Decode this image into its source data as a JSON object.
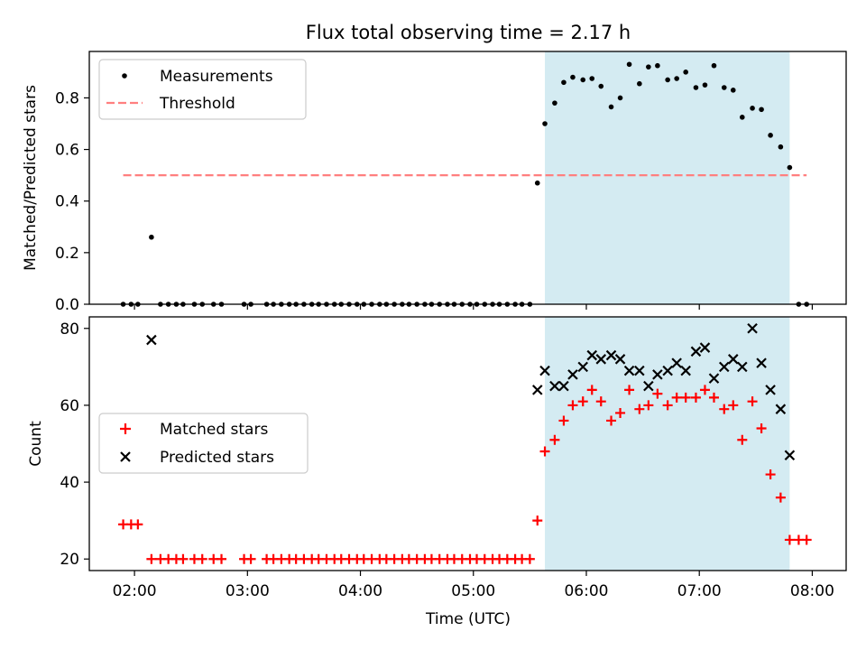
{
  "title": "Flux total observing time = 2.17 h",
  "colors": {
    "measurements": "#000000",
    "threshold": "#ff7f7f",
    "matched": "#ff0000",
    "predicted": "#000000",
    "span": "#add8e6"
  },
  "chart_data": [
    {
      "type": "scatter",
      "ylabel": "Matched/Predicted stars",
      "xlabel": "",
      "xlim": [
        1.6,
        8.3
      ],
      "ylim": [
        0,
        0.98
      ],
      "grid": false,
      "legend": "top-left",
      "x_ticks": [
        2,
        3,
        4,
        5,
        6,
        7,
        8
      ],
      "y_ticks": [
        "0.0",
        "0.2",
        "0.4",
        "0.6",
        "0.8"
      ],
      "highlight_span": [
        5.633,
        7.8
      ],
      "threshold": {
        "name": "Threshold",
        "value": 0.5,
        "x_range": [
          1.9,
          7.95
        ]
      },
      "series": [
        {
          "name": "Measurements",
          "marker": "dot",
          "points": [
            [
              1.9,
              0
            ],
            [
              1.97,
              0
            ],
            [
              2.03,
              0
            ],
            [
              2.15,
              0.26
            ],
            [
              2.23,
              0
            ],
            [
              2.3,
              0
            ],
            [
              2.37,
              0
            ],
            [
              2.43,
              0
            ],
            [
              2.53,
              0
            ],
            [
              2.6,
              0
            ],
            [
              2.7,
              0
            ],
            [
              2.77,
              0
            ],
            [
              2.97,
              0
            ],
            [
              3.03,
              0
            ],
            [
              3.17,
              0
            ],
            [
              3.23,
              0
            ],
            [
              3.3,
              0
            ],
            [
              3.37,
              0
            ],
            [
              3.43,
              0
            ],
            [
              3.5,
              0
            ],
            [
              3.57,
              0
            ],
            [
              3.63,
              0
            ],
            [
              3.7,
              0
            ],
            [
              3.77,
              0
            ],
            [
              3.83,
              0
            ],
            [
              3.9,
              0
            ],
            [
              3.97,
              0
            ],
            [
              4.03,
              0
            ],
            [
              4.1,
              0
            ],
            [
              4.17,
              0
            ],
            [
              4.23,
              0
            ],
            [
              4.3,
              0
            ],
            [
              4.37,
              0
            ],
            [
              4.43,
              0
            ],
            [
              4.5,
              0
            ],
            [
              4.57,
              0
            ],
            [
              4.63,
              0
            ],
            [
              4.7,
              0
            ],
            [
              4.77,
              0
            ],
            [
              4.83,
              0
            ],
            [
              4.9,
              0
            ],
            [
              4.97,
              0
            ],
            [
              5.03,
              0
            ],
            [
              5.1,
              0
            ],
            [
              5.17,
              0
            ],
            [
              5.23,
              0
            ],
            [
              5.3,
              0
            ],
            [
              5.37,
              0
            ],
            [
              5.43,
              0
            ],
            [
              5.5,
              0
            ],
            [
              5.567,
              0.47
            ],
            [
              5.633,
              0.7
            ],
            [
              5.72,
              0.78
            ],
            [
              5.8,
              0.86
            ],
            [
              5.88,
              0.88
            ],
            [
              5.97,
              0.87
            ],
            [
              6.05,
              0.875
            ],
            [
              6.13,
              0.845
            ],
            [
              6.22,
              0.765
            ],
            [
              6.3,
              0.8
            ],
            [
              6.38,
              0.93
            ],
            [
              6.47,
              0.855
            ],
            [
              6.55,
              0.92
            ],
            [
              6.63,
              0.925
            ],
            [
              6.72,
              0.87
            ],
            [
              6.8,
              0.875
            ],
            [
              6.88,
              0.9
            ],
            [
              6.97,
              0.84
            ],
            [
              7.05,
              0.85
            ],
            [
              7.13,
              0.925
            ],
            [
              7.22,
              0.84
            ],
            [
              7.3,
              0.83
            ],
            [
              7.38,
              0.725
            ],
            [
              7.47,
              0.76
            ],
            [
              7.55,
              0.755
            ],
            [
              7.63,
              0.655
            ],
            [
              7.72,
              0.61
            ],
            [
              7.8,
              0.53
            ],
            [
              7.88,
              0
            ],
            [
              7.95,
              0
            ]
          ]
        }
      ]
    },
    {
      "type": "scatter",
      "ylabel": "Count",
      "xlabel": "Time (UTC)",
      "xlim": [
        1.6,
        8.3
      ],
      "ylim": [
        17,
        83
      ],
      "grid": false,
      "legend": "center-left",
      "x_ticks": [
        2,
        3,
        4,
        5,
        6,
        7,
        8
      ],
      "x_tick_labels": [
        "02:00",
        "03:00",
        "04:00",
        "05:00",
        "06:00",
        "07:00",
        "08:00"
      ],
      "y_ticks": [
        "20",
        "40",
        "60",
        "80"
      ],
      "highlight_span": [
        5.633,
        7.8
      ],
      "series": [
        {
          "name": "Matched stars",
          "marker": "plus",
          "points": [
            [
              1.9,
              29
            ],
            [
              1.97,
              29
            ],
            [
              2.03,
              29
            ],
            [
              2.15,
              20
            ],
            [
              2.23,
              20
            ],
            [
              2.3,
              20
            ],
            [
              2.37,
              20
            ],
            [
              2.43,
              20
            ],
            [
              2.53,
              20
            ],
            [
              2.6,
              20
            ],
            [
              2.7,
              20
            ],
            [
              2.77,
              20
            ],
            [
              2.97,
              20
            ],
            [
              3.03,
              20
            ],
            [
              3.17,
              20
            ],
            [
              3.23,
              20
            ],
            [
              3.3,
              20
            ],
            [
              3.37,
              20
            ],
            [
              3.43,
              20
            ],
            [
              3.5,
              20
            ],
            [
              3.57,
              20
            ],
            [
              3.63,
              20
            ],
            [
              3.7,
              20
            ],
            [
              3.77,
              20
            ],
            [
              3.83,
              20
            ],
            [
              3.9,
              20
            ],
            [
              3.97,
              20
            ],
            [
              4.03,
              20
            ],
            [
              4.1,
              20
            ],
            [
              4.17,
              20
            ],
            [
              4.23,
              20
            ],
            [
              4.3,
              20
            ],
            [
              4.37,
              20
            ],
            [
              4.43,
              20
            ],
            [
              4.5,
              20
            ],
            [
              4.57,
              20
            ],
            [
              4.63,
              20
            ],
            [
              4.7,
              20
            ],
            [
              4.77,
              20
            ],
            [
              4.83,
              20
            ],
            [
              4.9,
              20
            ],
            [
              4.97,
              20
            ],
            [
              5.03,
              20
            ],
            [
              5.1,
              20
            ],
            [
              5.17,
              20
            ],
            [
              5.23,
              20
            ],
            [
              5.3,
              20
            ],
            [
              5.37,
              20
            ],
            [
              5.43,
              20
            ],
            [
              5.5,
              20
            ],
            [
              5.567,
              30
            ],
            [
              5.633,
              48
            ],
            [
              5.72,
              51
            ],
            [
              5.8,
              56
            ],
            [
              5.88,
              60
            ],
            [
              5.97,
              61
            ],
            [
              6.05,
              64
            ],
            [
              6.13,
              61
            ],
            [
              6.22,
              56
            ],
            [
              6.3,
              58
            ],
            [
              6.38,
              64
            ],
            [
              6.47,
              59
            ],
            [
              6.55,
              60
            ],
            [
              6.63,
              63
            ],
            [
              6.72,
              60
            ],
            [
              6.8,
              62
            ],
            [
              6.88,
              62
            ],
            [
              6.97,
              62
            ],
            [
              7.05,
              64
            ],
            [
              7.13,
              62
            ],
            [
              7.22,
              59
            ],
            [
              7.3,
              60
            ],
            [
              7.38,
              51
            ],
            [
              7.47,
              61
            ],
            [
              7.55,
              54
            ],
            [
              7.63,
              42
            ],
            [
              7.72,
              36
            ],
            [
              7.8,
              25
            ],
            [
              7.88,
              25
            ],
            [
              7.95,
              25
            ]
          ]
        },
        {
          "name": "Predicted stars",
          "marker": "x",
          "points": [
            [
              2.15,
              77
            ],
            [
              5.567,
              64
            ],
            [
              5.633,
              69
            ],
            [
              5.72,
              65
            ],
            [
              5.8,
              65
            ],
            [
              5.88,
              68
            ],
            [
              5.97,
              70
            ],
            [
              6.05,
              73
            ],
            [
              6.13,
              72
            ],
            [
              6.22,
              73
            ],
            [
              6.3,
              72
            ],
            [
              6.38,
              69
            ],
            [
              6.47,
              69
            ],
            [
              6.55,
              65
            ],
            [
              6.63,
              68
            ],
            [
              6.72,
              69
            ],
            [
              6.8,
              71
            ],
            [
              6.88,
              69
            ],
            [
              6.97,
              74
            ],
            [
              7.05,
              75
            ],
            [
              7.13,
              67
            ],
            [
              7.22,
              70
            ],
            [
              7.3,
              72
            ],
            [
              7.38,
              70
            ],
            [
              7.47,
              80
            ],
            [
              7.55,
              71
            ],
            [
              7.63,
              64
            ],
            [
              7.72,
              59
            ],
            [
              7.8,
              47
            ]
          ]
        }
      ]
    }
  ]
}
